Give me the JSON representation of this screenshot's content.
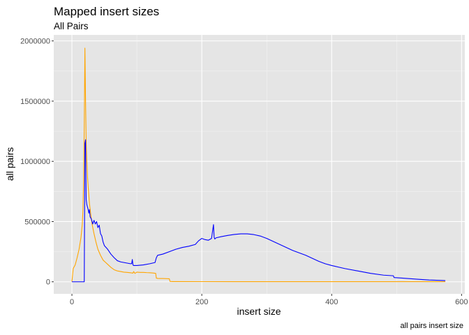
{
  "chart_data": {
    "type": "line",
    "title": "Mapped insert sizes",
    "subtitle": "All Pairs",
    "xlabel": "insert size",
    "ylabel": "all pairs",
    "caption": "all pairs insert size",
    "xlim": [
      -28,
      605
    ],
    "ylim": [
      -100000,
      2050000
    ],
    "x_ticks": [
      0,
      200,
      400,
      600
    ],
    "x_tick_labels": [
      "0",
      "200",
      "400",
      "600"
    ],
    "y_ticks": [
      0,
      500000,
      1000000,
      1500000,
      2000000
    ],
    "y_tick_labels": [
      "0",
      "500000",
      "1000000",
      "1500000",
      "2000000"
    ],
    "grid": true,
    "colors": {
      "panel_background": "#e5e5e5",
      "grid_major": "#ffffff",
      "grid_minor": "#f2f2f2",
      "blue_series": "#0000ff",
      "orange_series": "#ffa500"
    },
    "series": [
      {
        "color": "#ffa500",
        "x": [
          0,
          2,
          5,
          8,
          11,
          14,
          16,
          17,
          18,
          19,
          20,
          21,
          22,
          23,
          24,
          25,
          27,
          29,
          31,
          34,
          37,
          40,
          44,
          48,
          52,
          56,
          60,
          65,
          70,
          75,
          80,
          85,
          90,
          94,
          95,
          97,
          100,
          105,
          110,
          115,
          120,
          125,
          129,
          130,
          132,
          135,
          140,
          150,
          151,
          155,
          200,
          250,
          300,
          350,
          400,
          450,
          500,
          550,
          575
        ],
        "y": [
          0,
          110000,
          140000,
          200000,
          270000,
          370000,
          480000,
          600000,
          830000,
          1300000,
          1940000,
          1500000,
          1150000,
          1000000,
          870000,
          790000,
          650000,
          560000,
          480000,
          400000,
          330000,
          270000,
          220000,
          180000,
          160000,
          140000,
          120000,
          100000,
          90000,
          85000,
          80000,
          78000,
          75000,
          72000,
          85000,
          70000,
          80000,
          78000,
          78000,
          76000,
          75000,
          73000,
          70000,
          30000,
          28000,
          27000,
          27000,
          25000,
          3000,
          2000,
          1500,
          1200,
          1000,
          1000,
          1000,
          1000,
          1000,
          1000,
          1000
        ]
      },
      {
        "color": "#0000ff",
        "x": [
          0,
          18,
          19,
          20,
          21,
          22,
          23,
          24,
          25,
          26,
          27,
          28,
          30,
          32,
          34,
          36,
          38,
          40,
          42,
          44,
          46,
          48,
          50,
          55,
          60,
          65,
          70,
          75,
          80,
          85,
          90,
          92,
          93,
          94,
          95,
          100,
          110,
          120,
          128,
          130,
          132,
          140,
          150,
          160,
          170,
          180,
          190,
          195,
          200,
          205,
          210,
          215,
          218,
          219,
          220,
          222,
          230,
          240,
          250,
          260,
          270,
          280,
          290,
          300,
          320,
          340,
          360,
          380,
          390,
          400,
          420,
          440,
          460,
          480,
          495,
          496,
          510,
          530,
          550,
          575
        ],
        "y": [
          0,
          0,
          0,
          1150000,
          1180000,
          680000,
          640000,
          620000,
          600000,
          570000,
          600000,
          540000,
          520000,
          480000,
          510000,
          480000,
          500000,
          450000,
          470000,
          400000,
          380000,
          330000,
          300000,
          270000,
          230000,
          200000,
          175000,
          165000,
          160000,
          155000,
          150000,
          150000,
          185000,
          140000,
          135000,
          135000,
          140000,
          150000,
          160000,
          200000,
          220000,
          230000,
          250000,
          270000,
          285000,
          295000,
          310000,
          340000,
          360000,
          350000,
          345000,
          360000,
          475000,
          370000,
          355000,
          365000,
          375000,
          385000,
          393000,
          398000,
          398000,
          392000,
          380000,
          360000,
          310000,
          260000,
          220000,
          170000,
          150000,
          135000,
          110000,
          90000,
          70000,
          55000,
          50000,
          35000,
          30000,
          22000,
          15000,
          10000
        ]
      }
    ]
  }
}
